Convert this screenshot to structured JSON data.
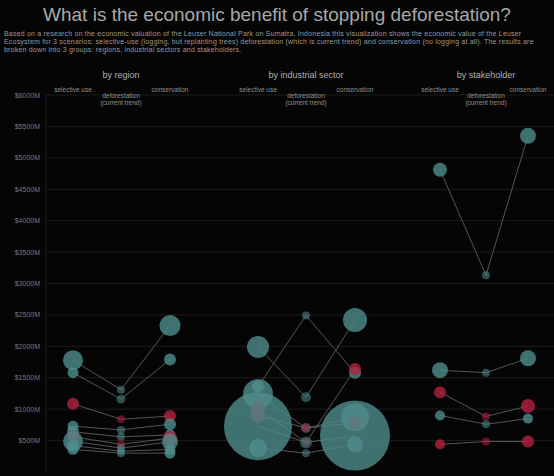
{
  "chart_data": {
    "type": "bubble",
    "title": "What is the economic benefit of stopping deforestation?",
    "subtitle": "Based on a research on the economic valuation of the Leuser National Park on Sumatra, Indonesia this visualization shows the economic value of the Leuser Ecosystem for 3 scenarios: selective-use (logging, but replanting trees) deforestation (which is current trend) and conservation (no logging at all). The results are broken down into 3 groups: regions, industrial sectors and stakeholders.",
    "ylim": [
      0,
      6000
    ],
    "yticks": [
      {
        "value": 500,
        "label": "$500M"
      },
      {
        "value": 1000,
        "label": "$1000M"
      },
      {
        "value": 1500,
        "label": "$1500M"
      },
      {
        "value": 2000,
        "label": "$2000M"
      },
      {
        "value": 2500,
        "label": "$2500M"
      },
      {
        "value": 3000,
        "label": "$3000M"
      },
      {
        "value": 3500,
        "label": "$3500M"
      },
      {
        "value": 4000,
        "label": "$4000M"
      },
      {
        "value": 4500,
        "label": "$4500M"
      },
      {
        "value": 5000,
        "label": "$5000M"
      },
      {
        "value": 5500,
        "label": "$5500M"
      },
      {
        "value": 6000,
        "label": "$6000M"
      }
    ],
    "grid": true,
    "panels": [
      {
        "title": "by region",
        "categories": [
          "selective use",
          "deforestation (current trend)",
          "conservation"
        ],
        "series": [
          {
            "color": "#4f8c8c",
            "values": [
              1780,
              1310,
              2330
            ],
            "sizes": [
              100,
              16,
              110
            ]
          },
          {
            "color": "#4f8c8c",
            "values": [
              1580,
              1160,
              1790
            ],
            "sizes": [
              30,
              20,
              36
            ]
          },
          {
            "color": "#b3203f",
            "values": [
              1085,
              840,
              890
            ],
            "sizes": [
              36,
              16,
              36
            ]
          },
          {
            "color": "#4f8c8c",
            "values": [
              730,
              670,
              760
            ],
            "sizes": [
              30,
              16,
              36
            ]
          },
          {
            "color": "#4f8c8c",
            "values": [
              640,
              560,
              590
            ],
            "sizes": [
              36,
              16,
              30
            ]
          },
          {
            "color": "#b3203f",
            "values": [
              560,
              440,
              540
            ],
            "sizes": [
              30,
              16,
              49
            ]
          },
          {
            "color": "#4f8c8c",
            "values": [
              490,
              380,
              480
            ],
            "sizes": [
              100,
              16,
              64
            ]
          },
          {
            "color": "#4f8c8c",
            "values": [
              420,
              330,
              360
            ],
            "sizes": [
              36,
              16,
              30
            ]
          },
          {
            "color": "#4f8c8c",
            "values": [
              360,
              300,
              300
            ],
            "sizes": [
              30,
              16,
              30
            ]
          }
        ]
      },
      {
        "title": "by industrial sector",
        "categories": [
          "selective use",
          "deforestation (current trend)",
          "conservation"
        ],
        "series": [
          {
            "color": "#4f8c8c",
            "values": [
              1990,
              1190,
              2420
            ],
            "sizes": [
              121,
              25,
              144
            ]
          },
          {
            "color": "#4f8c8c",
            "values": [
              1360,
              2490,
              1580
            ],
            "sizes": [
              36,
              16,
              36
            ]
          },
          {
            "color": "#4f8c8c",
            "values": [
              1240,
              700,
              870
            ],
            "sizes": [
              225,
              25,
              196
            ]
          },
          {
            "color": "#b3203f",
            "values": [
              1010,
              470,
              1640
            ],
            "sizes": [
              49,
              16,
              36
            ]
          },
          {
            "color": "#b3203f",
            "values": [
              900,
              700,
              780
            ],
            "sizes": [
              49,
              16,
              49
            ]
          },
          {
            "color": "#4f8c8c",
            "values": [
              730,
              470,
              580
            ],
            "sizes": [
              1156,
              36,
              1225
            ]
          },
          {
            "color": "#4f8c8c",
            "values": [
              380,
              300,
              440
            ],
            "sizes": [
              81,
              16,
              64
            ]
          }
        ]
      },
      {
        "title": "by stakeholder",
        "categories": [
          "selective use",
          "deforestation (current trend)",
          "conservation"
        ],
        "series": [
          {
            "color": "#4f8c8c",
            "values": [
              4810,
              3130,
              5350
            ],
            "sizes": [
              49,
              16,
              64
            ]
          },
          {
            "color": "#4f8c8c",
            "values": [
              1620,
              1580,
              1810
            ],
            "sizes": [
              64,
              16,
              64
            ]
          },
          {
            "color": "#b3203f",
            "values": [
              1270,
              885,
              1050
            ],
            "sizes": [
              36,
              16,
              49
            ]
          },
          {
            "color": "#4f8c8c",
            "values": [
              900,
              760,
              850
            ],
            "sizes": [
              25,
              16,
              25
            ]
          },
          {
            "color": "#b3203f",
            "values": [
              440,
              485,
              485
            ],
            "sizes": [
              25,
              16,
              36
            ]
          }
        ]
      }
    ]
  }
}
